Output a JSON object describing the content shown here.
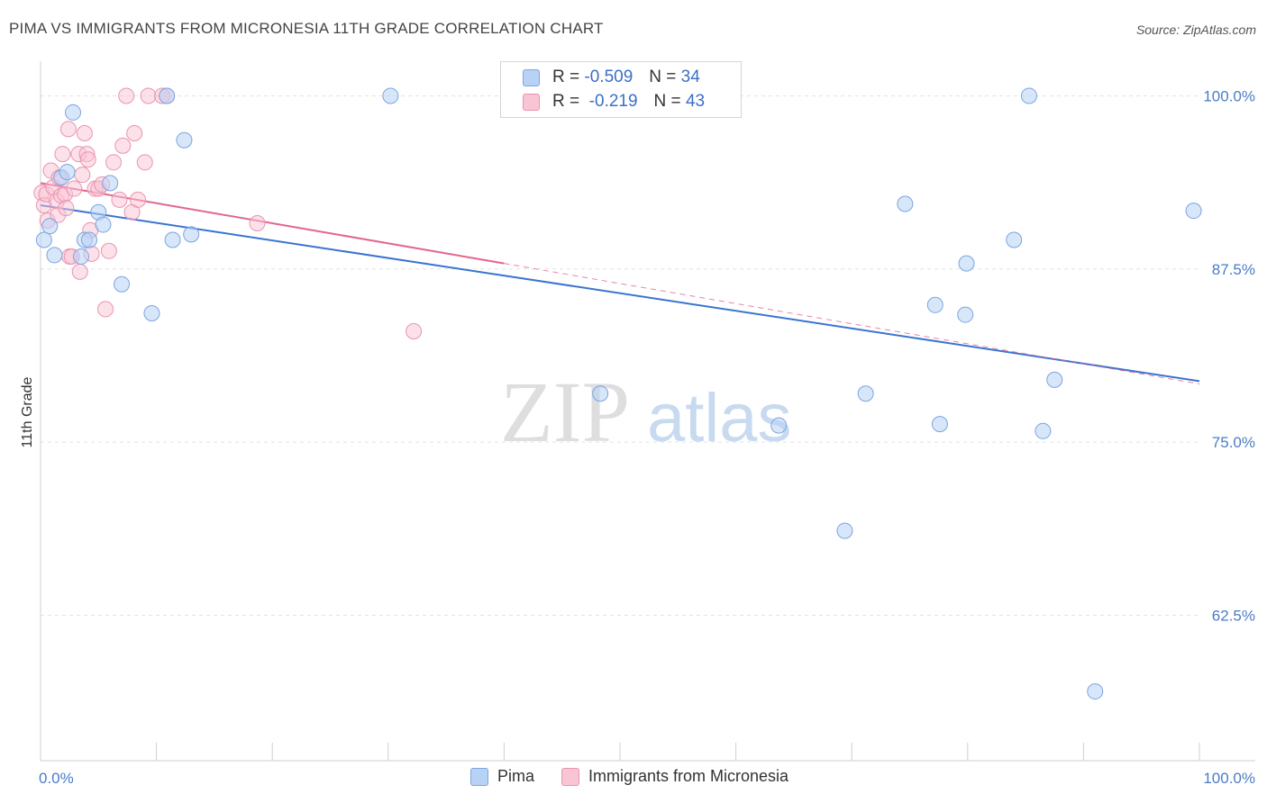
{
  "title": "PIMA VS IMMIGRANTS FROM MICRONESIA 11TH GRADE CORRELATION CHART",
  "source": "Source: ZipAtlas.com",
  "colors": {
    "pima_fill": "#b8d2f5",
    "pima_stroke": "#7aa5e0",
    "pima_line": "#3a74d0",
    "micronesia_fill": "#f9c4d4",
    "micronesia_stroke": "#ea93b0",
    "micronesia_line": "#e2668f",
    "tick_label": "#4a7cc7",
    "grid": "#e3e3e3"
  },
  "legend": {
    "rows": [
      {
        "r_label": "R =",
        "r_value": "-0.509",
        "n_label": "N =",
        "n_value": "34"
      },
      {
        "r_label": "R =",
        "r_value": "-0.219",
        "n_label": "N =",
        "n_value": "43"
      }
    ]
  },
  "watermark": {
    "part1": "ZIP",
    "part2": "atlas"
  },
  "chart_data": {
    "type": "scatter",
    "title": "PIMA VS IMMIGRANTS FROM MICRONESIA 11TH GRADE CORRELATION CHART",
    "xlabel": "",
    "ylabel": "11th Grade",
    "xlim": [
      0,
      100
    ],
    "ylim": [
      52,
      102.5
    ],
    "x_tick_labels": [
      "0.0%",
      "100.0%"
    ],
    "y_ticks": [
      100,
      87.5,
      75,
      62.5
    ],
    "y_tick_labels": [
      "100.0%",
      "87.5%",
      "75.0%",
      "62.5%"
    ],
    "grid": true,
    "legend_position": "top-center",
    "series": [
      {
        "name": "Pima",
        "r": -0.509,
        "n": 34,
        "points": [
          [
            0.3,
            89.6
          ],
          [
            0.8,
            90.6
          ],
          [
            1.2,
            88.5
          ],
          [
            1.8,
            94.1
          ],
          [
            2.3,
            94.5
          ],
          [
            2.8,
            98.8
          ],
          [
            3.5,
            88.4
          ],
          [
            3.8,
            89.6
          ],
          [
            4.2,
            89.6
          ],
          [
            5.0,
            91.6
          ],
          [
            5.4,
            90.7
          ],
          [
            6.0,
            93.7
          ],
          [
            7.0,
            86.4
          ],
          [
            9.6,
            84.3
          ],
          [
            10.9,
            100.0
          ],
          [
            11.4,
            89.6
          ],
          [
            12.4,
            96.8
          ],
          [
            13.0,
            90.0
          ],
          [
            30.2,
            100.0
          ],
          [
            48.3,
            78.5
          ],
          [
            63.7,
            76.2
          ],
          [
            69.4,
            68.6
          ],
          [
            71.2,
            78.5
          ],
          [
            74.6,
            92.2
          ],
          [
            77.2,
            84.9
          ],
          [
            77.6,
            76.3
          ],
          [
            79.8,
            84.2
          ],
          [
            79.9,
            87.9
          ],
          [
            84.0,
            89.6
          ],
          [
            85.3,
            100.0
          ],
          [
            86.5,
            75.8
          ],
          [
            87.5,
            79.5
          ],
          [
            91.0,
            57.0
          ],
          [
            99.5,
            91.7
          ]
        ],
        "trend": {
          "x": [
            0,
            100
          ],
          "y": [
            92.1,
            79.4
          ]
        }
      },
      {
        "name": "Immigrants from Micronesia",
        "r": -0.219,
        "n": 43,
        "points": [
          [
            0.1,
            93.0
          ],
          [
            0.3,
            92.1
          ],
          [
            0.5,
            92.9
          ],
          [
            0.6,
            91.0
          ],
          [
            0.9,
            94.6
          ],
          [
            1.1,
            93.4
          ],
          [
            1.4,
            92.4
          ],
          [
            1.5,
            91.4
          ],
          [
            1.6,
            94.1
          ],
          [
            1.8,
            92.8
          ],
          [
            1.9,
            95.8
          ],
          [
            2.1,
            92.9
          ],
          [
            2.2,
            91.9
          ],
          [
            2.4,
            97.6
          ],
          [
            2.5,
            88.4
          ],
          [
            2.7,
            88.4
          ],
          [
            2.9,
            93.3
          ],
          [
            3.3,
            95.8
          ],
          [
            3.4,
            87.3
          ],
          [
            3.6,
            94.3
          ],
          [
            3.8,
            97.3
          ],
          [
            4.0,
            95.8
          ],
          [
            4.1,
            95.4
          ],
          [
            4.3,
            90.3
          ],
          [
            4.4,
            88.6
          ],
          [
            4.7,
            93.3
          ],
          [
            5.0,
            93.3
          ],
          [
            5.3,
            93.6
          ],
          [
            5.6,
            84.6
          ],
          [
            5.9,
            88.8
          ],
          [
            6.3,
            95.2
          ],
          [
            6.8,
            92.5
          ],
          [
            7.1,
            96.4
          ],
          [
            7.4,
            100.0
          ],
          [
            7.9,
            91.6
          ],
          [
            8.1,
            97.3
          ],
          [
            8.4,
            92.5
          ],
          [
            9.0,
            95.2
          ],
          [
            9.3,
            100.0
          ],
          [
            10.5,
            100.0
          ],
          [
            10.9,
            100.0
          ],
          [
            18.7,
            90.8
          ],
          [
            32.2,
            83.0
          ]
        ],
        "trend": {
          "x": [
            0,
            40
          ],
          "y": [
            93.7,
            87.9
          ]
        },
        "trend_extension": {
          "x": [
            40,
            100
          ],
          "y": [
            87.9,
            79.2
          ]
        }
      }
    ]
  },
  "bottom_legend": {
    "items": [
      "Pima",
      "Immigrants from Micronesia"
    ]
  }
}
